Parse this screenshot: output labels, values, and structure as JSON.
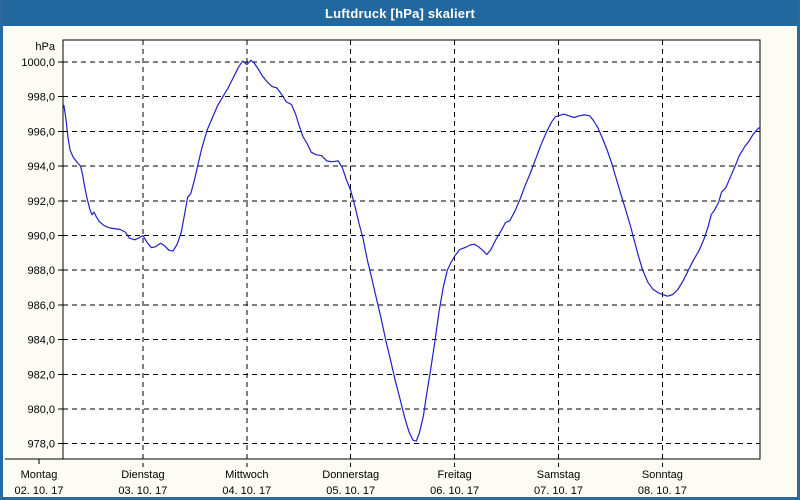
{
  "window": {
    "title": "Luftdruck [hPa] skaliert"
  },
  "colors": {
    "titlebar": "#21689E",
    "window_border": "#2A6A9F",
    "window_background": "#FCFCF4",
    "plot_background": "#FFFFFF",
    "grid": "#000000",
    "line": "#2020C8",
    "title_text": "#FFFFFF",
    "label_text": "#000000"
  },
  "chart_data": {
    "type": "line",
    "title": "Luftdruck [hPa] skaliert",
    "ylabel_unit": "hPa",
    "grid": "dashed",
    "legend": "none",
    "y_axis": {
      "min": 978,
      "max": 1000,
      "step": 2,
      "plot_range": [
        977.1,
        1001.3
      ],
      "ticks": [
        1000,
        998,
        996,
        994,
        992,
        990,
        988,
        986,
        984,
        982,
        980,
        978
      ],
      "tick_labels": [
        "1000,0",
        "998,0",
        "996,0",
        "994,0",
        "992,0",
        "990,0",
        "988,0",
        "986,0",
        "984,0",
        "982,0",
        "980,0",
        "978,0"
      ]
    },
    "x_axis": {
      "start_day_fraction": 0.236,
      "end_day_fraction": 6.94,
      "day_labels": [
        {
          "name": "Montag",
          "date": "02. 10. 17"
        },
        {
          "name": "Dienstag",
          "date": "03. 10. 17"
        },
        {
          "name": "Mittwoch",
          "date": "04. 10. 17"
        },
        {
          "name": "Donnerstag",
          "date": "05. 10. 17"
        },
        {
          "name": "Freitag",
          "date": "06. 10. 17"
        },
        {
          "name": "Samstag",
          "date": "07. 10. 17"
        },
        {
          "name": "Sonntag",
          "date": "08. 10. 17"
        }
      ]
    },
    "series": [
      {
        "name": "Luftdruck",
        "color": "#2020C8",
        "points_day_hpa": [
          [
            0.24,
            997.5
          ],
          [
            0.26,
            996.7
          ],
          [
            0.28,
            995.6
          ],
          [
            0.3,
            994.9
          ],
          [
            0.33,
            994.5
          ],
          [
            0.37,
            994.2
          ],
          [
            0.4,
            994.0
          ],
          [
            0.42,
            993.5
          ],
          [
            0.44,
            992.8
          ],
          [
            0.46,
            992.2
          ],
          [
            0.49,
            991.5
          ],
          [
            0.51,
            991.2
          ],
          [
            0.53,
            991.35
          ],
          [
            0.55,
            991.1
          ],
          [
            0.58,
            990.8
          ],
          [
            0.62,
            990.6
          ],
          [
            0.67,
            990.45
          ],
          [
            0.72,
            990.4
          ],
          [
            0.78,
            990.35
          ],
          [
            0.83,
            990.2
          ],
          [
            0.87,
            989.85
          ],
          [
            0.92,
            989.75
          ],
          [
            0.96,
            989.85
          ],
          [
            1.0,
            990.0
          ],
          [
            1.04,
            989.6
          ],
          [
            1.08,
            989.3
          ],
          [
            1.12,
            989.35
          ],
          [
            1.17,
            989.55
          ],
          [
            1.21,
            989.4
          ],
          [
            1.25,
            989.15
          ],
          [
            1.29,
            989.1
          ],
          [
            1.33,
            989.5
          ],
          [
            1.37,
            990.2
          ],
          [
            1.4,
            991.2
          ],
          [
            1.43,
            992.2
          ],
          [
            1.46,
            992.4
          ],
          [
            1.5,
            993.3
          ],
          [
            1.53,
            994.1
          ],
          [
            1.57,
            995.1
          ],
          [
            1.62,
            996.1
          ],
          [
            1.67,
            996.8
          ],
          [
            1.72,
            997.5
          ],
          [
            1.77,
            998.0
          ],
          [
            1.82,
            998.5
          ],
          [
            1.87,
            999.1
          ],
          [
            1.92,
            999.7
          ],
          [
            1.96,
            1000.05
          ],
          [
            2.0,
            999.85
          ],
          [
            2.04,
            1000.1
          ],
          [
            2.07,
            999.95
          ],
          [
            2.11,
            999.6
          ],
          [
            2.15,
            999.2
          ],
          [
            2.19,
            998.9
          ],
          [
            2.24,
            998.6
          ],
          [
            2.29,
            998.5
          ],
          [
            2.34,
            998.1
          ],
          [
            2.38,
            997.7
          ],
          [
            2.43,
            997.55
          ],
          [
            2.47,
            997.0
          ],
          [
            2.5,
            996.4
          ],
          [
            2.54,
            995.7
          ],
          [
            2.58,
            995.3
          ],
          [
            2.62,
            994.8
          ],
          [
            2.67,
            994.65
          ],
          [
            2.72,
            994.6
          ],
          [
            2.77,
            994.3
          ],
          [
            2.82,
            994.25
          ],
          [
            2.88,
            994.3
          ],
          [
            2.92,
            993.9
          ],
          [
            2.96,
            993.2
          ],
          [
            3.0,
            992.6
          ],
          [
            3.04,
            991.7
          ],
          [
            3.08,
            990.7
          ],
          [
            3.12,
            989.8
          ],
          [
            3.16,
            988.6
          ],
          [
            3.2,
            987.6
          ],
          [
            3.25,
            986.3
          ],
          [
            3.29,
            985.3
          ],
          [
            3.34,
            983.9
          ],
          [
            3.38,
            982.9
          ],
          [
            3.43,
            981.6
          ],
          [
            3.47,
            980.7
          ],
          [
            3.52,
            979.5
          ],
          [
            3.56,
            978.7
          ],
          [
            3.6,
            978.2
          ],
          [
            3.63,
            978.15
          ],
          [
            3.66,
            978.6
          ],
          [
            3.7,
            979.6
          ],
          [
            3.73,
            980.8
          ],
          [
            3.77,
            982.3
          ],
          [
            3.81,
            983.9
          ],
          [
            3.85,
            985.6
          ],
          [
            3.89,
            987.0
          ],
          [
            3.93,
            988.0
          ],
          [
            3.97,
            988.5
          ],
          [
            4.0,
            988.8
          ],
          [
            4.05,
            989.2
          ],
          [
            4.1,
            989.3
          ],
          [
            4.15,
            989.45
          ],
          [
            4.19,
            989.5
          ],
          [
            4.23,
            989.35
          ],
          [
            4.28,
            989.1
          ],
          [
            4.31,
            988.9
          ],
          [
            4.35,
            989.2
          ],
          [
            4.4,
            989.8
          ],
          [
            4.45,
            990.3
          ],
          [
            4.49,
            990.75
          ],
          [
            4.53,
            990.85
          ],
          [
            4.58,
            991.4
          ],
          [
            4.63,
            992.1
          ],
          [
            4.68,
            992.9
          ],
          [
            4.73,
            993.6
          ],
          [
            4.78,
            994.4
          ],
          [
            4.83,
            995.2
          ],
          [
            4.88,
            995.9
          ],
          [
            4.93,
            996.5
          ],
          [
            4.97,
            996.85
          ],
          [
            5.0,
            996.9
          ],
          [
            5.05,
            997.0
          ],
          [
            5.1,
            996.9
          ],
          [
            5.15,
            996.8
          ],
          [
            5.2,
            996.9
          ],
          [
            5.25,
            996.95
          ],
          [
            5.3,
            996.9
          ],
          [
            5.34,
            996.6
          ],
          [
            5.38,
            996.2
          ],
          [
            5.43,
            995.5
          ],
          [
            5.47,
            994.9
          ],
          [
            5.51,
            994.2
          ],
          [
            5.55,
            993.4
          ],
          [
            5.6,
            992.4
          ],
          [
            5.64,
            991.6
          ],
          [
            5.69,
            990.6
          ],
          [
            5.73,
            989.7
          ],
          [
            5.77,
            988.8
          ],
          [
            5.81,
            988.0
          ],
          [
            5.86,
            987.3
          ],
          [
            5.91,
            986.9
          ],
          [
            5.96,
            986.7
          ],
          [
            6.0,
            986.6
          ],
          [
            6.05,
            986.5
          ],
          [
            6.1,
            986.6
          ],
          [
            6.15,
            986.9
          ],
          [
            6.2,
            987.4
          ],
          [
            6.25,
            988.0
          ],
          [
            6.3,
            988.6
          ],
          [
            6.35,
            989.1
          ],
          [
            6.4,
            989.8
          ],
          [
            6.44,
            990.5
          ],
          [
            6.47,
            991.2
          ],
          [
            6.5,
            991.45
          ],
          [
            6.54,
            991.9
          ],
          [
            6.57,
            992.5
          ],
          [
            6.61,
            992.75
          ],
          [
            6.65,
            993.3
          ],
          [
            6.7,
            994.0
          ],
          [
            6.74,
            994.6
          ],
          [
            6.79,
            995.1
          ],
          [
            6.83,
            995.4
          ],
          [
            6.87,
            995.8
          ],
          [
            6.91,
            996.1
          ],
          [
            6.94,
            996.25
          ]
        ]
      }
    ]
  }
}
